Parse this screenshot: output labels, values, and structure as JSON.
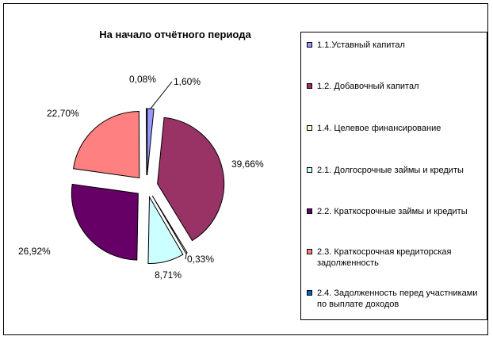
{
  "chart_data": {
    "type": "pie",
    "title": "На начало отчётного периода",
    "categories": [
      "1.1.Уставный капитал",
      "1.2. Добавочный капитал",
      "1.4. Целевое финансирование",
      "2.1. Долгосрочные займы и кредиты",
      "2.2. Краткосрочные займы и кредиты",
      "2.3. Краткосрочная кредиторская задолженность",
      "2.4. Задолженность перед участниками по выплате доходов"
    ],
    "values": [
      1.6,
      39.66,
      0.33,
      8.71,
      26.92,
      22.7,
      0.08
    ],
    "value_labels": [
      "1,60%",
      "39,66%",
      "0,33%",
      "8,71%",
      "26,92%",
      "22,70%",
      "0,08%"
    ],
    "colors": [
      "#9999FF",
      "#993366",
      "#FFFFCC",
      "#CCFFFF",
      "#660066",
      "#FF8080",
      "#0066CC"
    ],
    "exploded": true,
    "legend_position": "right"
  }
}
